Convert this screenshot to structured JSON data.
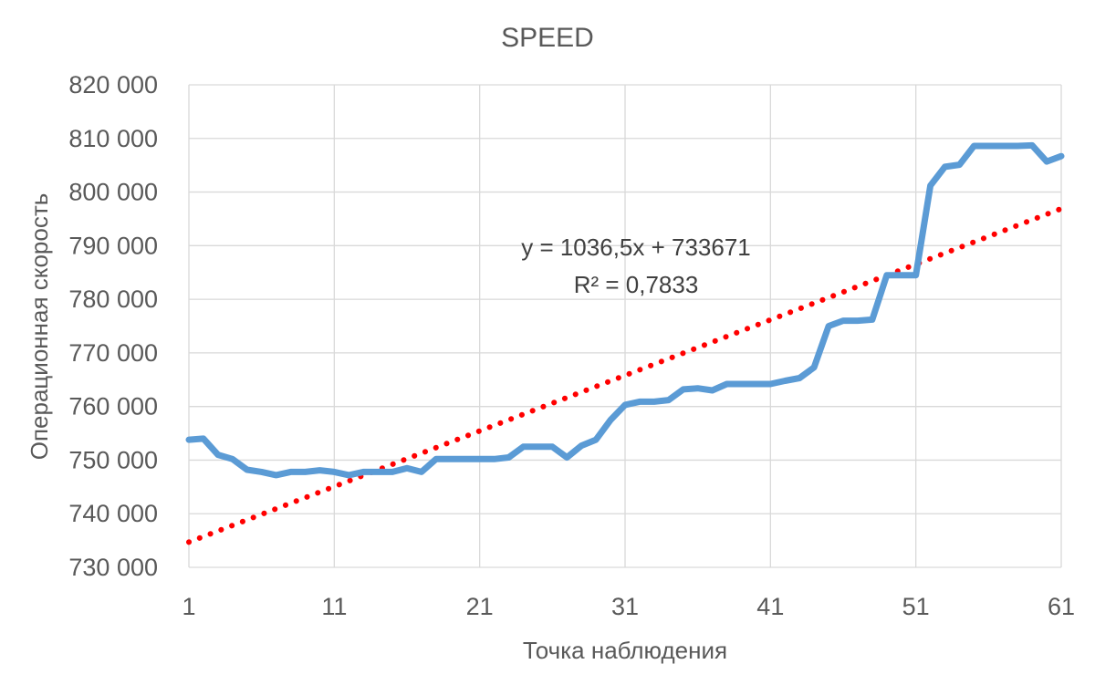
{
  "chart_data": {
    "type": "line",
    "title": "SPEED",
    "xlabel": "Точка наблюдения",
    "ylabel": "Операционная скорость",
    "xlim": [
      1,
      61
    ],
    "ylim": [
      730000,
      820000
    ],
    "x_ticks": [
      "1",
      "11",
      "21",
      "31",
      "41",
      "51",
      "61"
    ],
    "y_ticks": [
      "730 000",
      "740 000",
      "750 000",
      "760 000",
      "770 000",
      "780 000",
      "790 000",
      "800 000",
      "810 000",
      "820 000"
    ],
    "grid": true,
    "series": [
      {
        "color": "#5B9BD5",
        "x": [
          1,
          2,
          3,
          4,
          5,
          6,
          7,
          8,
          9,
          10,
          11,
          12,
          13,
          14,
          15,
          16,
          17,
          18,
          19,
          20,
          21,
          22,
          23,
          24,
          25,
          26,
          27,
          28,
          29,
          30,
          31,
          32,
          33,
          34,
          35,
          36,
          37,
          38,
          39,
          40,
          41,
          42,
          43,
          44,
          45,
          46,
          47,
          48,
          49,
          50,
          51,
          52,
          53,
          54,
          55,
          56,
          57,
          58,
          59,
          60,
          61
        ],
        "values": [
          753800,
          754000,
          751000,
          750200,
          748200,
          747800,
          747200,
          747800,
          747800,
          748100,
          747800,
          747200,
          747800,
          747800,
          747800,
          748500,
          747800,
          750200,
          750200,
          750200,
          750200,
          750200,
          750500,
          752500,
          752500,
          752500,
          750500,
          752700,
          753800,
          757500,
          760300,
          760900,
          760900,
          761200,
          763200,
          763400,
          763000,
          764200,
          764200,
          764200,
          764200,
          764800,
          765300,
          767300,
          775000,
          776000,
          776000,
          776200,
          784500,
          784500,
          784500,
          801200,
          804700,
          805100,
          808600,
          808600,
          808600,
          808600,
          808700,
          805700,
          806700
        ]
      }
    ],
    "trendline": {
      "type": "linear",
      "color": "#FF0000",
      "slope": 1036.5,
      "intercept": 733671,
      "equation": "y = 1036,5x + 733671",
      "r2": "R² = 0,7833"
    }
  }
}
